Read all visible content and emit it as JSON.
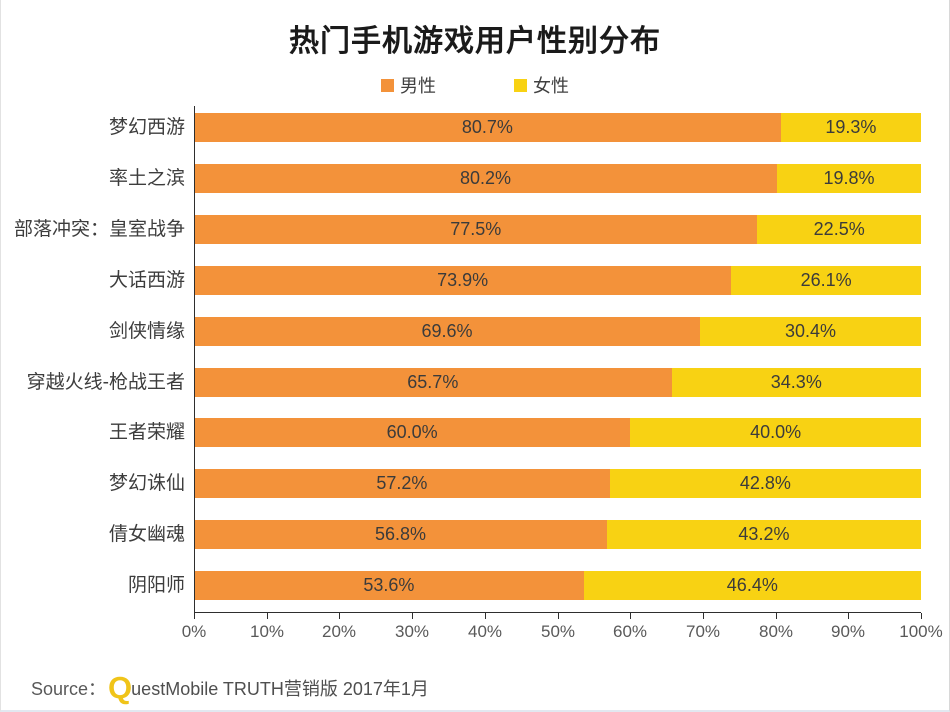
{
  "title": "热门手机游戏用户性别分布",
  "legend": [
    {
      "label": "男性",
      "color": "#F3923A"
    },
    {
      "label": "女性",
      "color": "#F8D213"
    }
  ],
  "chart_data": {
    "type": "bar",
    "orientation": "horizontal",
    "stacked": true,
    "title": "热门手机游戏用户性别分布",
    "categories": [
      "梦幻西游",
      "率土之滨",
      "部落冲突：皇室战争",
      "大话西游",
      "剑侠情缘",
      "穿越火线-枪战王者",
      "王者荣耀",
      "梦幻诛仙",
      "倩女幽魂",
      "阴阳师"
    ],
    "series": [
      {
        "name": "男性",
        "color": "#F3923A",
        "values": [
          80.7,
          80.2,
          77.5,
          73.9,
          69.6,
          65.7,
          60.0,
          57.2,
          56.8,
          53.6
        ]
      },
      {
        "name": "女性",
        "color": "#F8D213",
        "values": [
          19.3,
          19.8,
          22.5,
          26.1,
          30.4,
          34.3,
          40.0,
          42.8,
          43.2,
          46.4
        ]
      }
    ],
    "value_suffix": "%",
    "x_ticks": [
      "0%",
      "10%",
      "20%",
      "30%",
      "40%",
      "50%",
      "60%",
      "70%",
      "80%",
      "90%",
      "100%"
    ],
    "xlim": [
      0,
      100
    ],
    "grid": false,
    "legend_position": "top"
  },
  "source": {
    "prefix": "Source：",
    "logo_q": "Q",
    "rest": "uestMobile TRUTH营销版 2017年1月"
  }
}
